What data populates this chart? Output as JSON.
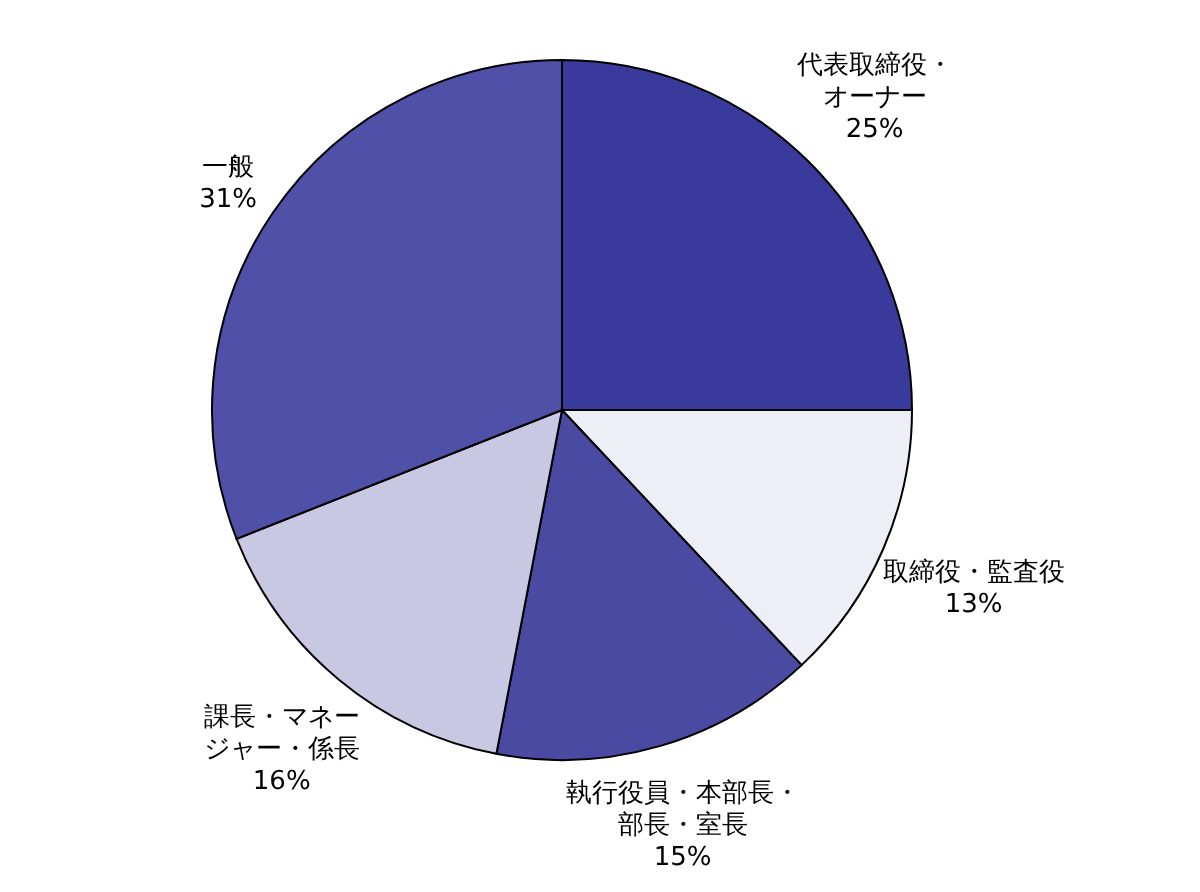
{
  "chart_data": {
    "type": "pie",
    "categories": [
      "代表取締役・オーナー",
      "取締役・監査役",
      "執行役員・本部長・部長・室長",
      "課長・マネージャー・係長",
      "一般"
    ],
    "values": [
      25,
      13,
      15,
      16,
      31
    ],
    "colors": [
      "#3a3a9c",
      "#eeeef7",
      "#4a4aa3",
      "#c8c8e3",
      "#5050a8"
    ],
    "value_labels": [
      "25%",
      "13%",
      "15%",
      "16%",
      "31%"
    ]
  }
}
